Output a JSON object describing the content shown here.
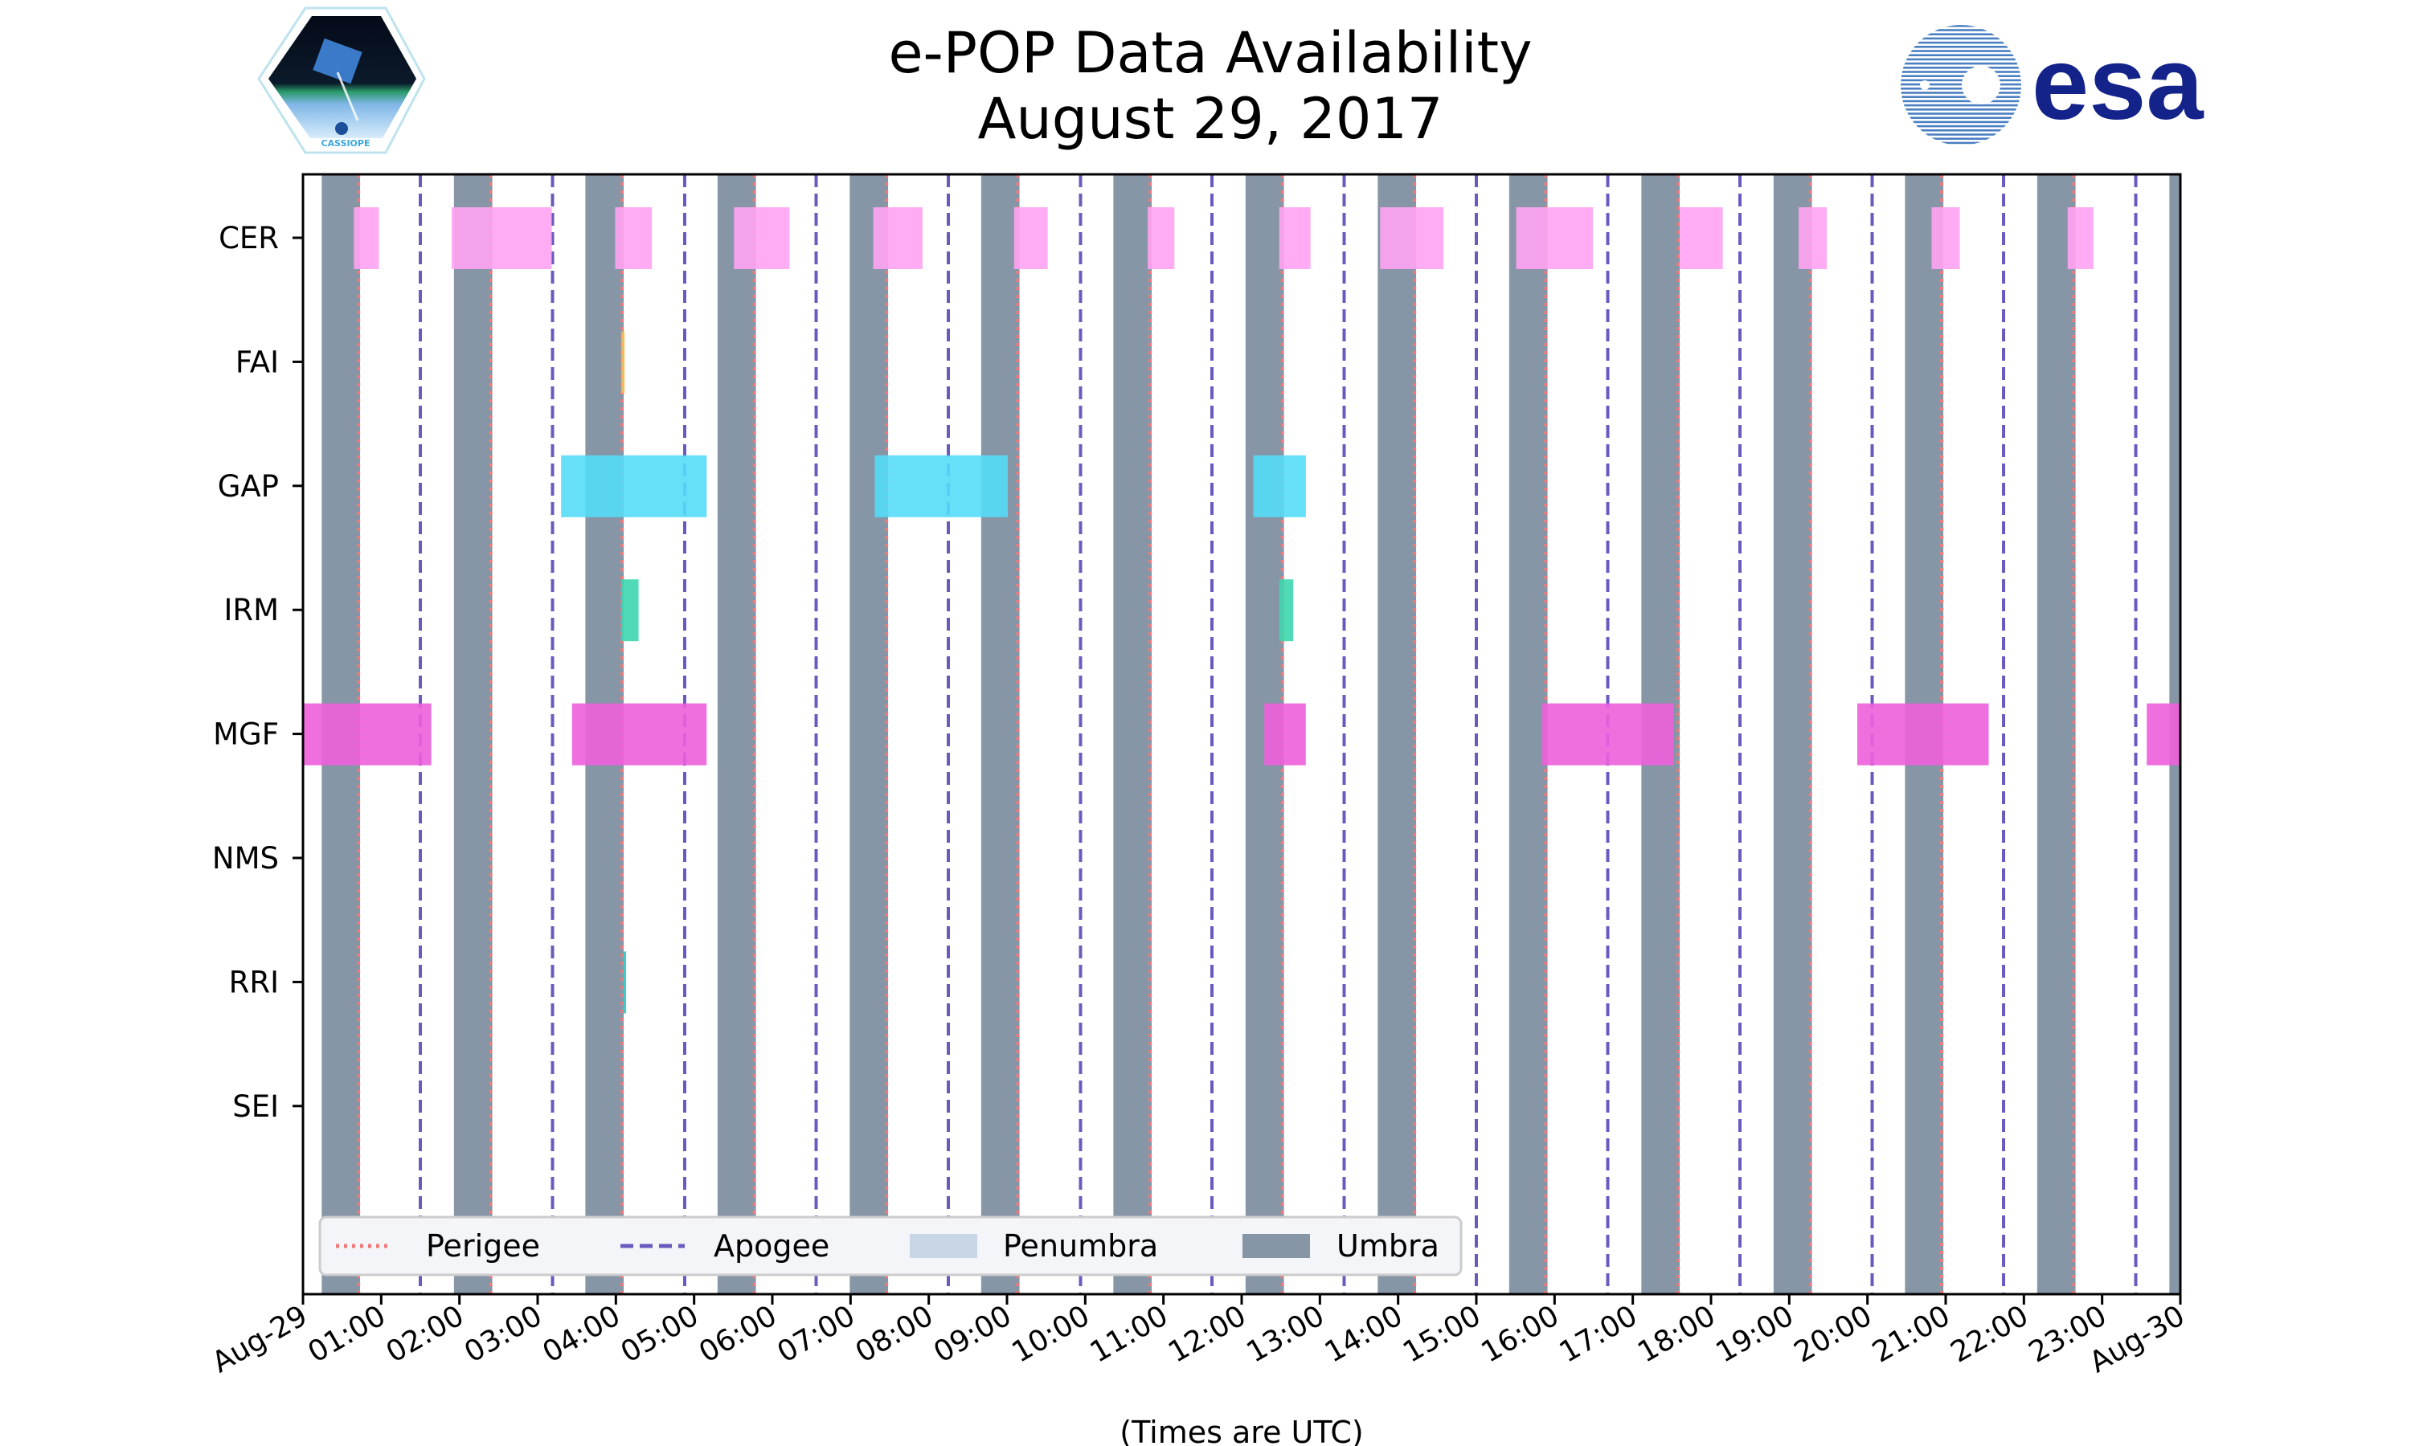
{
  "chart_data": {
    "type": "timeline",
    "title": [
      "e-POP Data Availability",
      "August 29, 2017"
    ],
    "xlabel": "(Times are UTC)",
    "xlim_hours": [
      0,
      24
    ],
    "xticks": [
      "Aug-29",
      "01:00",
      "02:00",
      "03:00",
      "04:00",
      "05:00",
      "06:00",
      "07:00",
      "08:00",
      "09:00",
      "10:00",
      "11:00",
      "12:00",
      "13:00",
      "14:00",
      "15:00",
      "16:00",
      "17:00",
      "18:00",
      "19:00",
      "20:00",
      "21:00",
      "22:00",
      "23:00",
      "Aug-30"
    ],
    "instruments": [
      "CER",
      "FAI",
      "GAP",
      "IRM",
      "MGF",
      "NMS",
      "RRI",
      "SEI"
    ],
    "colors": {
      "CER": "#ffa3f3",
      "FAI": "#f2bf55",
      "GAP": "#55dcf8",
      "IRM": "#3dd6ad",
      "MGF": "#ee5fdc",
      "NMS": "#999999",
      "RRI": "#2fc6c6",
      "SEI": "#999999",
      "umbra": "#8696a7",
      "penumbra": "#c8d6e5",
      "perigee": "#f07a7a",
      "apogee": "#6a5abf"
    },
    "availability_hours": {
      "CER": [
        [
          0.65,
          0.97
        ],
        [
          1.9,
          3.18
        ],
        [
          3.99,
          4.46
        ],
        [
          5.51,
          6.22
        ],
        [
          7.29,
          7.92
        ],
        [
          9.09,
          9.52
        ],
        [
          10.8,
          11.14
        ],
        [
          12.48,
          12.88
        ],
        [
          13.77,
          14.58
        ],
        [
          15.51,
          16.49
        ],
        [
          17.6,
          18.15
        ],
        [
          19.12,
          19.48
        ],
        [
          20.82,
          21.18
        ],
        [
          22.56,
          22.89
        ]
      ],
      "FAI": [
        [
          4.07,
          4.11
        ]
      ],
      "GAP": [
        [
          3.3,
          5.16
        ],
        [
          7.31,
          9.01
        ],
        [
          12.15,
          12.82
        ]
      ],
      "IRM": [
        [
          4.07,
          4.29
        ],
        [
          12.48,
          12.66
        ]
      ],
      "MGF": [
        [
          0.0,
          1.64
        ],
        [
          3.44,
          5.16
        ],
        [
          12.29,
          12.82
        ],
        [
          15.84,
          17.52
        ],
        [
          19.87,
          21.55
        ],
        [
          23.57,
          24.0
        ]
      ],
      "NMS": [],
      "RRI": [
        [
          4.09,
          4.12
        ]
      ],
      "SEI": []
    },
    "umbra_hours": [
      [
        0.24,
        0.73
      ],
      [
        1.93,
        2.42
      ],
      [
        3.61,
        4.1
      ],
      [
        5.3,
        5.79
      ],
      [
        6.99,
        7.48
      ],
      [
        8.67,
        9.16
      ],
      [
        10.36,
        10.85
      ],
      [
        12.05,
        12.54
      ],
      [
        13.74,
        14.23
      ],
      [
        15.42,
        15.91
      ],
      [
        17.11,
        17.6
      ],
      [
        18.8,
        19.29
      ],
      [
        20.48,
        20.97
      ],
      [
        22.17,
        22.66
      ],
      [
        23.86,
        24.0
      ]
    ],
    "perigee_hours": [
      0.71,
      2.4,
      4.08,
      5.77,
      7.46,
      9.14,
      10.83,
      12.52,
      14.21,
      15.89,
      17.58,
      19.27,
      20.95,
      22.64
    ],
    "apogee_hours": [
      1.5,
      3.19,
      4.88,
      6.56,
      8.25,
      9.94,
      11.62,
      13.31,
      15.0,
      16.68,
      18.37,
      20.06,
      21.74,
      23.43
    ],
    "legend": {
      "placement": "lower-left",
      "entries": [
        "Perigee",
        "Apogee",
        "Penumbra",
        "Umbra"
      ]
    }
  },
  "logos": {
    "left": "CASSIOPE",
    "right": "esa"
  }
}
